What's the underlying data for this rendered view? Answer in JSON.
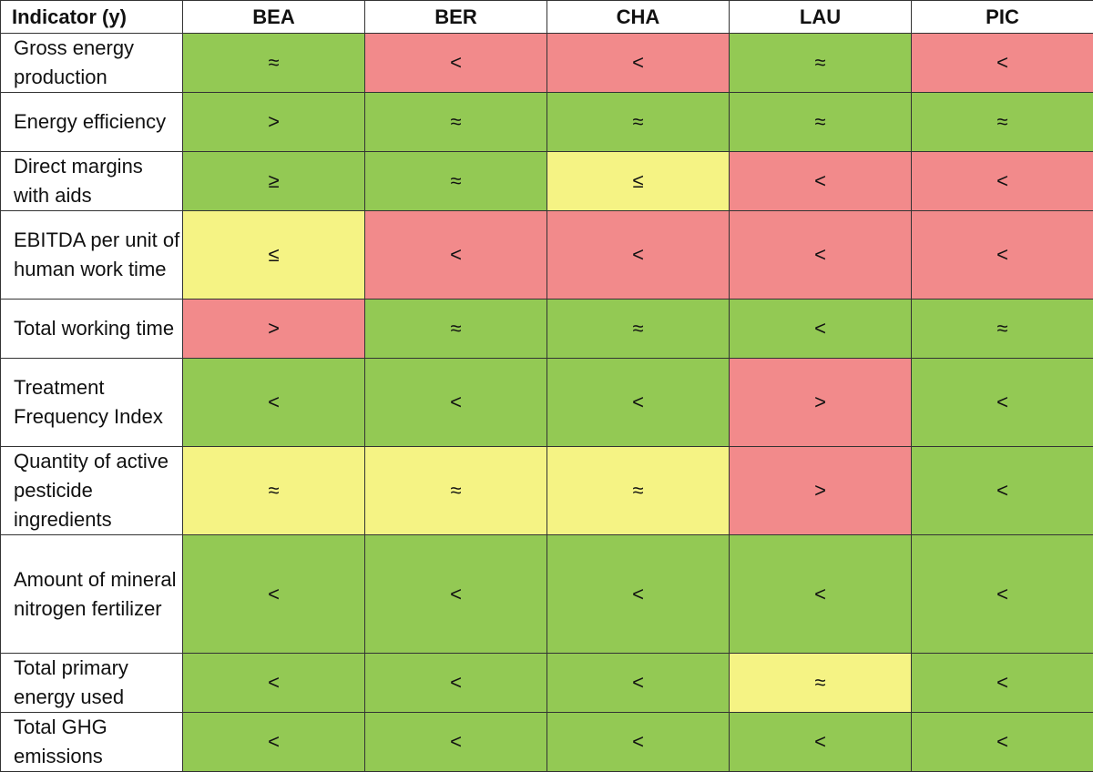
{
  "table": {
    "headers": [
      "Indicator (y)",
      "BEA",
      "BER",
      "CHA",
      "LAU",
      "PIC"
    ],
    "rows": [
      {
        "indicator": "Gross energy production",
        "values": [
          "≈",
          "<",
          "<",
          "≈",
          "<"
        ],
        "colors": [
          "green",
          "red",
          "red",
          "green",
          "red"
        ]
      },
      {
        "indicator": "Energy efficiency",
        "values": [
          ">",
          "≈",
          "≈",
          "≈",
          "≈"
        ],
        "colors": [
          "green",
          "green",
          "green",
          "green",
          "green"
        ]
      },
      {
        "indicator": "Direct margins with aids",
        "values": [
          "≥",
          "≈",
          "≤",
          "<",
          "<"
        ],
        "colors": [
          "green",
          "green",
          "yellow",
          "red",
          "red"
        ]
      },
      {
        "indicator": "EBITDA per unit of human work time",
        "values": [
          "≤",
          "<",
          "<",
          "<",
          "<"
        ],
        "colors": [
          "yellow",
          "red",
          "red",
          "red",
          "red"
        ]
      },
      {
        "indicator": "Total working time",
        "values": [
          ">",
          "≈",
          "≈",
          "<",
          "≈"
        ],
        "colors": [
          "red",
          "green",
          "green",
          "green",
          "green"
        ]
      },
      {
        "indicator": "Treatment Frequency Index",
        "values": [
          "<",
          "<",
          "<",
          ">",
          "<"
        ],
        "colors": [
          "green",
          "green",
          "green",
          "red",
          "green"
        ]
      },
      {
        "indicator": "Quantity of active pesticide ingredients",
        "values": [
          "≈",
          "≈",
          "≈",
          ">",
          "<"
        ],
        "colors": [
          "yellow",
          "yellow",
          "yellow",
          "red",
          "green"
        ]
      },
      {
        "indicator": "Amount of mineral nitrogen fertilizer",
        "values": [
          "<",
          "<",
          "<",
          "<",
          "<"
        ],
        "colors": [
          "green",
          "green",
          "green",
          "green",
          "green"
        ]
      },
      {
        "indicator": "Total primary energy used",
        "values": [
          "<",
          "<",
          "<",
          "≈",
          "<"
        ],
        "colors": [
          "green",
          "green",
          "green",
          "yellow",
          "green"
        ]
      },
      {
        "indicator": "Total GHG emissions",
        "values": [
          "<",
          "<",
          "<",
          "<",
          "<"
        ],
        "colors": [
          "green",
          "green",
          "green",
          "green",
          "green"
        ]
      }
    ]
  },
  "colors": {
    "green": "#93c954",
    "red": "#f28a8b",
    "yellow": "#f5f384"
  }
}
